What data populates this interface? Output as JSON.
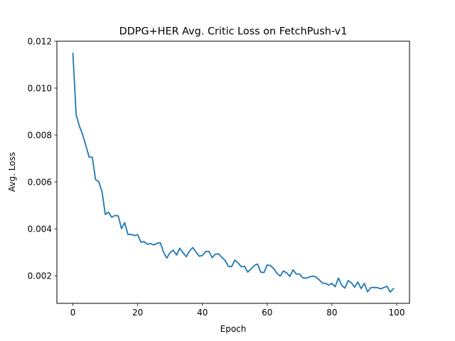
{
  "chart_data": {
    "type": "line",
    "title": "DDPG+HER Avg. Critic Loss on FetchPush-v1",
    "xlabel": "Epoch",
    "ylabel": "Avg. Loss",
    "xlim": [
      -4.95,
      103.95
    ],
    "ylim": [
      0.00082,
      0.012
    ],
    "xticks": [
      0,
      20,
      40,
      60,
      80,
      100
    ],
    "xtick_labels": [
      "0",
      "20",
      "40",
      "60",
      "80",
      "100"
    ],
    "yticks": [
      0.002,
      0.004,
      0.006,
      0.008,
      0.01,
      0.012
    ],
    "ytick_labels": [
      "0.002",
      "0.004",
      "0.006",
      "0.008",
      "0.010",
      "0.012"
    ],
    "grid": false,
    "legend": "none",
    "series": [
      {
        "color": "#1f77b4",
        "x": [
          0,
          1,
          2,
          3,
          4,
          5,
          6,
          7,
          8,
          9,
          10,
          11,
          12,
          13,
          14,
          15,
          16,
          17,
          18,
          19,
          20,
          21,
          22,
          23,
          24,
          25,
          26,
          27,
          28,
          29,
          30,
          31,
          32,
          33,
          34,
          35,
          36,
          37,
          38,
          39,
          40,
          41,
          42,
          43,
          44,
          45,
          46,
          47,
          48,
          49,
          50,
          51,
          52,
          53,
          54,
          55,
          56,
          57,
          58,
          59,
          60,
          61,
          62,
          63,
          64,
          65,
          66,
          67,
          68,
          69,
          70,
          71,
          72,
          73,
          74,
          75,
          76,
          77,
          78,
          79,
          80,
          81,
          82,
          83,
          84,
          85,
          86,
          87,
          88,
          89,
          90,
          91,
          92,
          93,
          94,
          95,
          96,
          97,
          98,
          99
        ],
        "y": [
          0.01148,
          0.00887,
          0.00838,
          0.00802,
          0.00755,
          0.00706,
          0.00705,
          0.0061,
          0.00601,
          0.00558,
          0.00461,
          0.00471,
          0.00449,
          0.00457,
          0.00455,
          0.00401,
          0.00426,
          0.00376,
          0.00376,
          0.00371,
          0.00375,
          0.00343,
          0.00345,
          0.00334,
          0.00337,
          0.00331,
          0.00338,
          0.00341,
          0.003,
          0.00275,
          0.00298,
          0.00309,
          0.00288,
          0.00317,
          0.00298,
          0.00281,
          0.00305,
          0.0032,
          0.00302,
          0.00283,
          0.00286,
          0.00303,
          0.00304,
          0.00277,
          0.00292,
          0.00293,
          0.00278,
          0.00265,
          0.0024,
          0.00238,
          0.00266,
          0.00255,
          0.00238,
          0.0024,
          0.00215,
          0.00229,
          0.00243,
          0.0025,
          0.00215,
          0.00213,
          0.00246,
          0.00243,
          0.00231,
          0.0021,
          0.00198,
          0.0022,
          0.00212,
          0.00197,
          0.00225,
          0.00207,
          0.00207,
          0.00191,
          0.00189,
          0.00194,
          0.00198,
          0.00195,
          0.00183,
          0.00169,
          0.00167,
          0.0016,
          0.00167,
          0.00153,
          0.0019,
          0.00159,
          0.00147,
          0.00179,
          0.0017,
          0.00151,
          0.00173,
          0.00145,
          0.00167,
          0.00131,
          0.00149,
          0.0015,
          0.00149,
          0.00144,
          0.00149,
          0.00155,
          0.0013,
          0.00145
        ]
      }
    ]
  }
}
